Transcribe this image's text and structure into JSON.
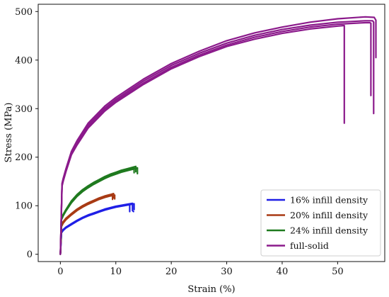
{
  "chart_data": {
    "type": "line",
    "xlabel": "Strain (%)",
    "ylabel": "Stress (MPa)",
    "xlim": [
      -4,
      58.5
    ],
    "ylim": [
      -15,
      515
    ],
    "xticks": [
      0,
      10,
      20,
      30,
      40,
      50
    ],
    "yticks": [
      0,
      100,
      200,
      300,
      400,
      500
    ],
    "grid": false,
    "legend_position": "lower-right",
    "series": [
      {
        "name": "16% infill density",
        "color": "#1f1fe6",
        "replicates": [
          {
            "x": [
              0,
              0.2,
              0.5,
              1,
              2,
              3,
              4,
              5,
              6,
              7,
              8,
              9,
              10,
              11,
              12,
              12.5,
              12.5
            ],
            "y": [
              0,
              45,
              50,
              55,
              62,
              69,
              75,
              80,
              84,
              88,
              92,
              95,
              98,
              100,
              102,
              103,
              88
            ]
          },
          {
            "x": [
              0,
              0.2,
              0.5,
              1,
              2,
              3,
              4,
              5,
              6,
              7,
              8,
              9,
              10,
              11,
              12,
              13,
              13,
              13.2
            ],
            "y": [
              0,
              46,
              51,
              56,
              63,
              70,
              76,
              81,
              85,
              89,
              93,
              96,
              99,
              101,
              103,
              105,
              90,
              88
            ]
          },
          {
            "x": [
              0,
              0.2,
              0.5,
              1,
              2,
              3,
              4,
              5,
              6,
              7,
              8,
              9,
              10,
              11,
              12,
              13.3,
              13.3
            ],
            "y": [
              0,
              44,
              49,
              54,
              61,
              68,
              74,
              79,
              83,
              87,
              91,
              94,
              97,
              99,
              101,
              104,
              92
            ]
          }
        ]
      },
      {
        "name": "20% infill density",
        "color": "#a83a14",
        "replicates": [
          {
            "x": [
              0,
              0.2,
              0.5,
              1,
              2,
              3,
              4,
              5,
              6,
              7,
              8,
              9,
              9.4,
              9.4
            ],
            "y": [
              0,
              58,
              65,
              72,
              82,
              91,
              98,
              104,
              109,
              114,
              118,
              121,
              123,
              113
            ]
          },
          {
            "x": [
              0,
              0.2,
              0.5,
              1,
              2,
              3,
              4,
              5,
              6,
              7,
              8,
              9,
              9.6,
              9.6
            ],
            "y": [
              0,
              60,
              67,
              74,
              84,
              93,
              100,
              106,
              111,
              116,
              120,
              123,
              125,
              116
            ]
          },
          {
            "x": [
              0,
              0.2,
              0.5,
              1,
              2,
              3,
              4,
              5,
              6,
              7,
              8,
              9,
              9.8,
              9.8
            ],
            "y": [
              0,
              57,
              64,
              71,
              81,
              90,
              97,
              103,
              108,
              113,
              117,
              120,
              122,
              114
            ]
          }
        ]
      },
      {
        "name": "24% infill density",
        "color": "#1f7a1f",
        "replicates": [
          {
            "x": [
              0,
              0.2,
              0.5,
              1,
              2,
              3,
              4,
              5,
              6,
              7,
              8,
              9,
              10,
              11,
              12,
              13,
              13.3,
              13.3
            ],
            "y": [
              0,
              72,
              80,
              90,
              108,
              121,
              131,
              139,
              146,
              152,
              158,
              163,
              167,
              171,
              174,
              177,
              178,
              168
            ]
          },
          {
            "x": [
              0,
              0.2,
              0.5,
              1,
              2,
              3,
              4,
              5,
              6,
              7,
              8,
              9,
              10,
              11,
              12,
              13,
              13.6,
              13.6
            ],
            "y": [
              0,
              74,
              82,
              92,
              110,
              123,
              133,
              141,
              148,
              154,
              160,
              165,
              169,
              173,
              176,
              179,
              181,
              170
            ]
          },
          {
            "x": [
              0,
              0.2,
              0.5,
              1,
              2,
              3,
              4,
              5,
              6,
              7,
              8,
              9,
              10,
              11,
              12,
              13,
              13.9,
              13.9
            ],
            "y": [
              0,
              71,
              79,
              89,
              106,
              119,
              129,
              137,
              144,
              150,
              156,
              161,
              165,
              169,
              172,
              175,
              178,
              166
            ]
          }
        ]
      },
      {
        "name": "full-solid",
        "color": "#8b1a8b",
        "replicates": [
          {
            "x": [
              0,
              0.3,
              0.5,
              1,
              2,
              3,
              5,
              8,
              10,
              15,
              20,
              25,
              30,
              35,
              40,
              45,
              50,
              51,
              51.2,
              51.2
            ],
            "y": [
              0,
              140,
              150,
              170,
              205,
              225,
              260,
              295,
              313,
              350,
              382,
              407,
              428,
              443,
              455,
              464,
              470,
              471,
              471,
              270
            ]
          },
          {
            "x": [
              0,
              0.3,
              0.5,
              1,
              2,
              3,
              5,
              8,
              10,
              15,
              20,
              25,
              30,
              35,
              40,
              45,
              50,
              55,
              55.8,
              56,
              56
            ],
            "y": [
              0,
              142,
              152,
              172,
              208,
              228,
              263,
              298,
              316,
              353,
              385,
              410,
              431,
              447,
              459,
              468,
              474,
              477,
              477,
              476,
              327
            ]
          },
          {
            "x": [
              0,
              0.3,
              0.5,
              1,
              2,
              3,
              5,
              8,
              10,
              15,
              20,
              25,
              30,
              35,
              40,
              45,
              50,
              55,
              56.3,
              56.5,
              56.5
            ],
            "y": [
              0,
              144,
              154,
              174,
              210,
              231,
              266,
              301,
              319,
              357,
              389,
              414,
              435,
              451,
              463,
              472,
              478,
              481,
              481,
              478,
              290
            ]
          },
          {
            "x": [
              0,
              0.3,
              0.5,
              1,
              2,
              3,
              5,
              8,
              10,
              15,
              20,
              25,
              30,
              35,
              40,
              45,
              50,
              55,
              56.6,
              56.9,
              56.9
            ],
            "y": [
              0,
              146,
              156,
              176,
              212,
              234,
              270,
              305,
              323,
              361,
              393,
              418,
              440,
              456,
              468,
              478,
              485,
              489,
              488,
              482,
              405
            ]
          }
        ]
      }
    ]
  }
}
